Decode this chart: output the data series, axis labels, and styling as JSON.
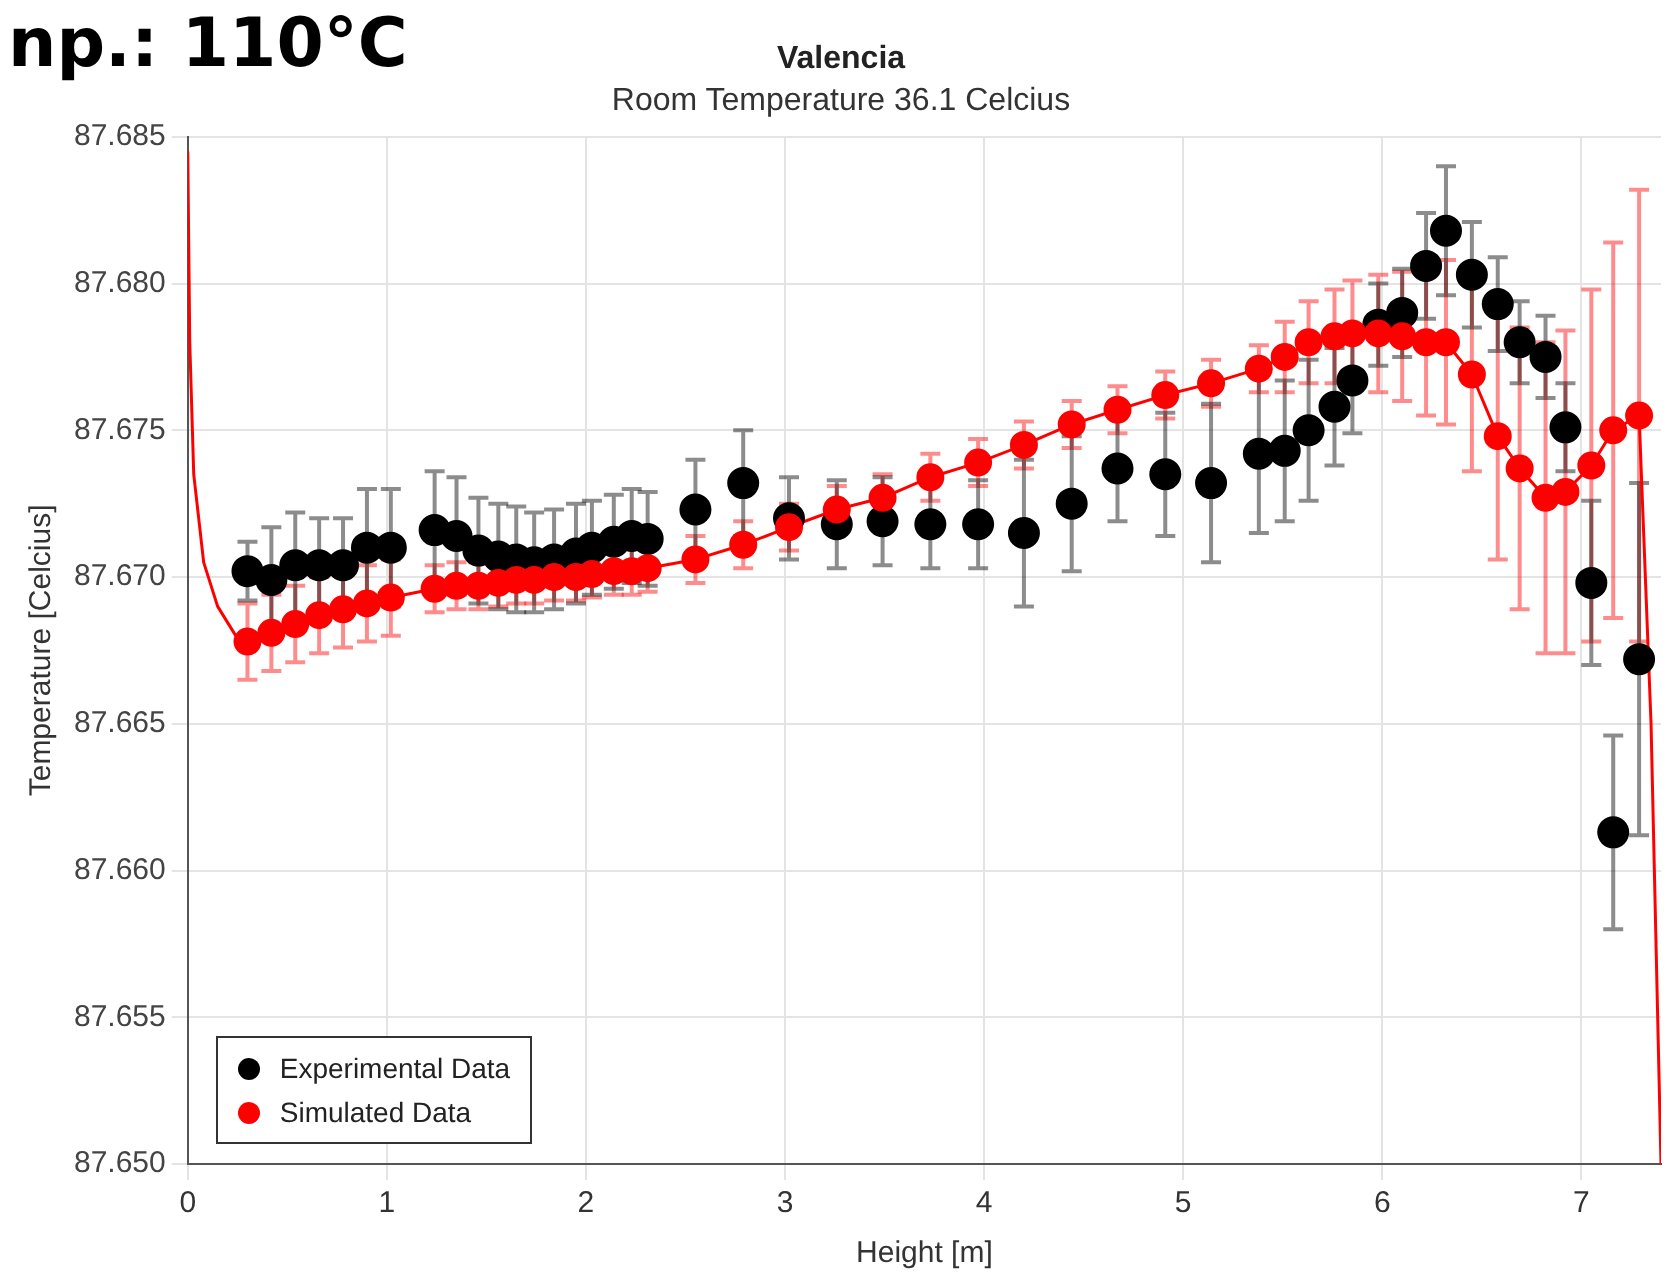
{
  "chart_data": {
    "type": "scatter",
    "title": "Valencia",
    "subtitle": "Room Temperature 36.1 Celcius",
    "xlabel": "Height [m]",
    "ylabel": "Temperature [Celcius]",
    "annotations": [
      "np.: 110°C"
    ],
    "xlim": [
      0,
      7.4
    ],
    "xticks": [
      0,
      1,
      2,
      3,
      4,
      5,
      6,
      7
    ],
    "ylim": [
      87.65,
      87.685
    ],
    "yticks": [
      {
        "value": 87.65,
        "label": "87.650"
      },
      {
        "value": 87.655,
        "label": "87.655"
      },
      {
        "value": 87.66,
        "label": "87.660"
      },
      {
        "value": 87.665,
        "label": "87.665"
      },
      {
        "value": 87.67,
        "label": "87.670"
      },
      {
        "value": 87.675,
        "label": "87.675"
      },
      {
        "value": 87.68,
        "label": "87.680"
      },
      {
        "value": 87.685,
        "label": "87.685"
      }
    ],
    "grid": true,
    "legend": "bottom left",
    "marker": "circle",
    "series": [
      {
        "type": "line",
        "color": "#ff0000",
        "marker": "none",
        "x": [
          0,
          0.01,
          0.03,
          0.08,
          0.15,
          0.25,
          0.3,
          0.42,
          0.54,
          0.66,
          0.78,
          0.9,
          1.02,
          1.24,
          1.35,
          1.46,
          1.56,
          1.65,
          1.74,
          1.84,
          1.95,
          2.03,
          2.14,
          2.23,
          2.31,
          2.55,
          2.79,
          3.02,
          3.26,
          3.49,
          3.73,
          3.97,
          4.2,
          4.44,
          4.67,
          4.91,
          5.14,
          5.38,
          5.51,
          5.63,
          5.76,
          5.85,
          5.98,
          6.1,
          6.22,
          6.32,
          6.45,
          6.58,
          6.69,
          6.82,
          6.92,
          7.05,
          7.16,
          7.29,
          7.35,
          7.4
        ],
        "values": [
          87.6845,
          87.678,
          87.6735,
          87.6705,
          87.669,
          87.6679,
          87.6678,
          87.6681,
          87.6684,
          87.6687,
          87.6689,
          87.6691,
          87.6693,
          87.6696,
          87.6697,
          87.6697,
          87.6698,
          87.6699,
          87.6699,
          87.67,
          87.67,
          87.6701,
          87.6702,
          87.6702,
          87.6703,
          87.6706,
          87.6711,
          87.6717,
          87.6723,
          87.6727,
          87.6734,
          87.6739,
          87.6745,
          87.6752,
          87.6757,
          87.6762,
          87.6766,
          87.6771,
          87.6775,
          87.678,
          87.6782,
          87.6783,
          87.6783,
          87.6782,
          87.678,
          87.678,
          87.6769,
          87.6748,
          87.6737,
          87.6727,
          87.6729,
          87.6738,
          87.675,
          87.6755,
          87.665,
          87.65
        ]
      },
      {
        "name": "Experimental Data",
        "color": "#000000",
        "x": [
          0.3,
          0.42,
          0.54,
          0.66,
          0.78,
          0.9,
          1.02,
          1.24,
          1.35,
          1.46,
          1.56,
          1.65,
          1.74,
          1.84,
          1.95,
          2.03,
          2.14,
          2.23,
          2.31,
          2.55,
          2.79,
          3.02,
          3.26,
          3.49,
          3.73,
          3.97,
          4.2,
          4.44,
          4.67,
          4.91,
          5.14,
          5.38,
          5.51,
          5.63,
          5.76,
          5.85,
          5.98,
          6.1,
          6.22,
          6.32,
          6.45,
          6.58,
          6.69,
          6.82,
          6.92,
          7.05,
          7.16,
          7.29
        ],
        "values": [
          87.6702,
          87.6699,
          87.6704,
          87.6704,
          87.6704,
          87.671,
          87.671,
          87.6716,
          87.6714,
          87.6709,
          87.6707,
          87.6706,
          87.6705,
          87.6706,
          87.6708,
          87.671,
          87.6712,
          87.6714,
          87.6713,
          87.6723,
          87.6732,
          87.672,
          87.6718,
          87.6719,
          87.6718,
          87.6718,
          87.6715,
          87.6725,
          87.6737,
          87.6735,
          87.6732,
          87.6742,
          87.6743,
          87.675,
          87.6758,
          87.6767,
          87.6786,
          87.679,
          87.6806,
          87.6818,
          87.6803,
          87.6793,
          87.678,
          87.6775,
          87.6751,
          87.6698,
          87.6613,
          87.6672
        ],
        "errors": [
          0.001,
          0.0018,
          0.0018,
          0.0016,
          0.0016,
          0.002,
          0.002,
          0.002,
          0.002,
          0.0018,
          0.0018,
          0.0018,
          0.0017,
          0.0017,
          0.0017,
          0.0016,
          0.0016,
          0.0016,
          0.0016,
          0.0017,
          0.0018,
          0.0014,
          0.0015,
          0.0015,
          0.0015,
          0.0015,
          0.0025,
          0.0023,
          0.0018,
          0.0021,
          0.0027,
          0.0027,
          0.0024,
          0.0024,
          0.002,
          0.0018,
          0.0014,
          0.0015,
          0.0018,
          0.0022,
          0.0018,
          0.0016,
          0.0014,
          0.0014,
          0.0015,
          0.0028,
          0.0033,
          0.006
        ]
      },
      {
        "name": "Simulated Data",
        "color": "#ff0000",
        "x": [
          0.3,
          0.42,
          0.54,
          0.66,
          0.78,
          0.9,
          1.02,
          1.24,
          1.35,
          1.46,
          1.56,
          1.65,
          1.74,
          1.84,
          1.95,
          2.03,
          2.14,
          2.23,
          2.31,
          2.55,
          2.79,
          3.02,
          3.26,
          3.49,
          3.73,
          3.97,
          4.2,
          4.44,
          4.67,
          4.91,
          5.14,
          5.38,
          5.51,
          5.63,
          5.76,
          5.85,
          5.98,
          6.1,
          6.22,
          6.32,
          6.45,
          6.58,
          6.69,
          6.82,
          6.92,
          7.05,
          7.16,
          7.29
        ],
        "values": [
          87.6678,
          87.6681,
          87.6684,
          87.6687,
          87.6689,
          87.6691,
          87.6693,
          87.6696,
          87.6697,
          87.6697,
          87.6698,
          87.6699,
          87.6699,
          87.67,
          87.67,
          87.6701,
          87.6702,
          87.6702,
          87.6703,
          87.6706,
          87.6711,
          87.6717,
          87.6723,
          87.6727,
          87.6734,
          87.6739,
          87.6745,
          87.6752,
          87.6757,
          87.6762,
          87.6766,
          87.6771,
          87.6775,
          87.678,
          87.6782,
          87.6783,
          87.6783,
          87.6782,
          87.678,
          87.678,
          87.6769,
          87.6748,
          87.6737,
          87.6727,
          87.6729,
          87.6738,
          87.675,
          87.6755
        ],
        "errors": [
          0.0013,
          0.0013,
          0.0013,
          0.0013,
          0.0013,
          0.0013,
          0.0013,
          0.0008,
          0.0008,
          0.0008,
          0.0008,
          0.0008,
          0.0008,
          0.0008,
          0.0008,
          0.0008,
          0.0008,
          0.0008,
          0.0008,
          0.0008,
          0.0008,
          0.0008,
          0.0008,
          0.0008,
          0.0008,
          0.0008,
          0.0008,
          0.0008,
          0.0008,
          0.0008,
          0.0008,
          0.0008,
          0.0012,
          0.0014,
          0.0016,
          0.0018,
          0.002,
          0.0022,
          0.0025,
          0.0028,
          0.0033,
          0.0042,
          0.0048,
          0.0053,
          0.0055,
          0.006,
          0.0064,
          0.0077
        ]
      }
    ]
  }
}
